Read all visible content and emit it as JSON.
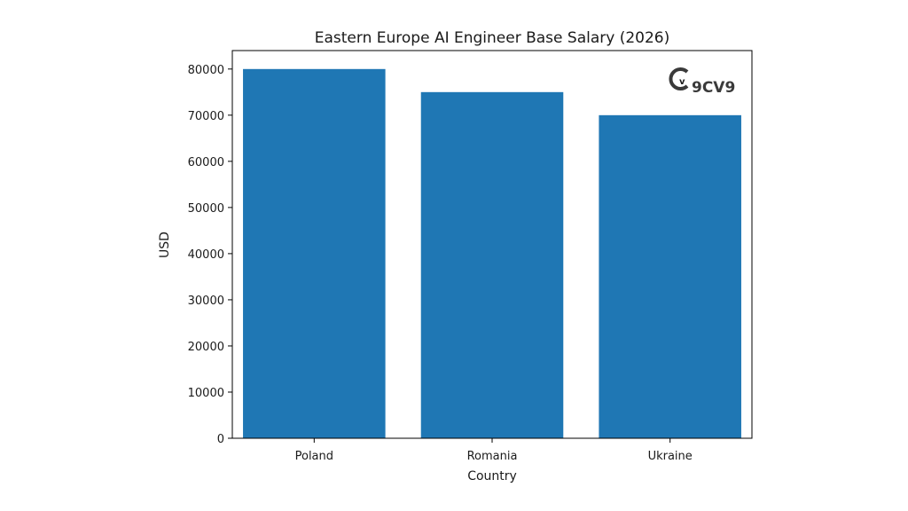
{
  "chart_data": {
    "type": "bar",
    "title": "Eastern Europe AI Engineer Base Salary (2026)",
    "xlabel": "Country",
    "ylabel": "USD",
    "categories": [
      "Poland",
      "Romania",
      "Ukraine"
    ],
    "values": [
      80000,
      75000,
      70000
    ],
    "ylim": [
      0,
      84000
    ],
    "yticks": [
      0,
      10000,
      20000,
      30000,
      40000,
      50000,
      60000,
      70000,
      80000
    ],
    "grid": false,
    "bar_color": "#1f77b4"
  },
  "watermark": {
    "text": "9CV9",
    "color": "#3a3a3a"
  }
}
